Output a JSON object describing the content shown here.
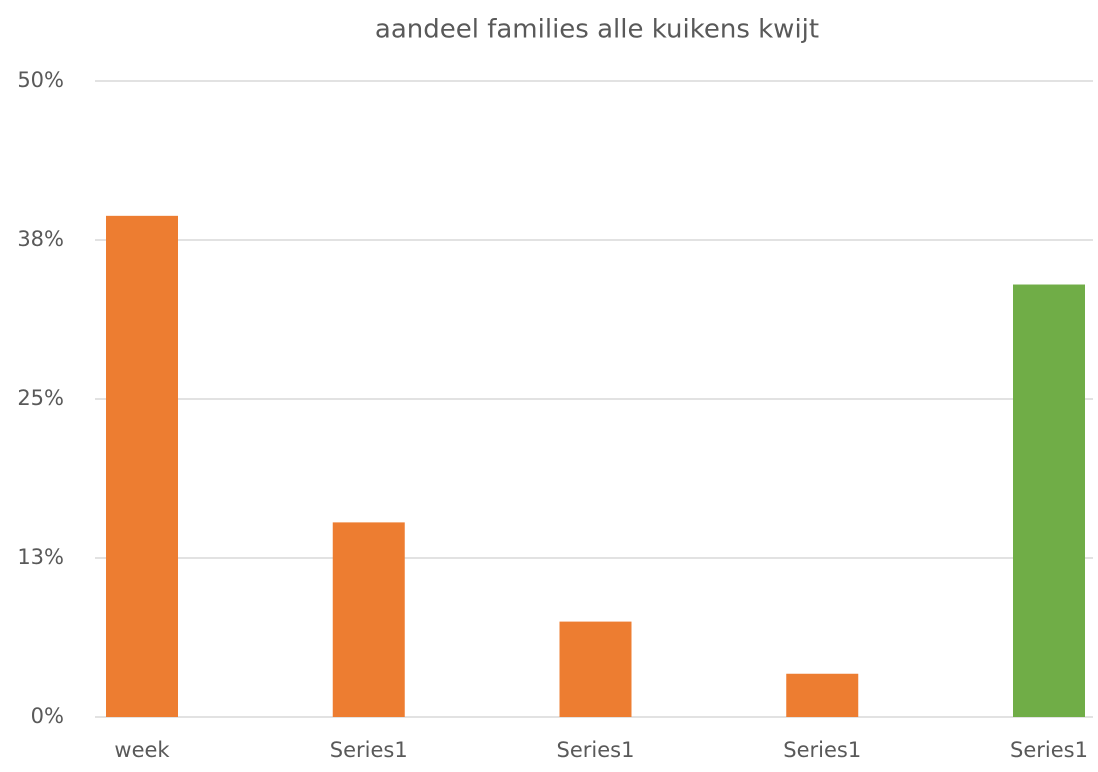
{
  "chart_data": {
    "type": "bar",
    "title": "aandeel families alle kuikens kwijt",
    "categories": [
      "week",
      "Series1",
      "Series1",
      "Series1",
      "Series1"
    ],
    "values": [
      39.4,
      15.3,
      7.5,
      3.4,
      34.0
    ],
    "colors": [
      "#ed7d31",
      "#ed7d31",
      "#ed7d31",
      "#ed7d31",
      "#70ad47"
    ],
    "ylim": [
      0,
      50
    ],
    "yticks": [
      {
        "value": 0,
        "label": "0%"
      },
      {
        "value": 12.5,
        "label": "13%"
      },
      {
        "value": 25,
        "label": "25%"
      },
      {
        "value": 37.5,
        "label": "38%"
      },
      {
        "value": 50,
        "label": "50%"
      }
    ],
    "grid": true
  }
}
